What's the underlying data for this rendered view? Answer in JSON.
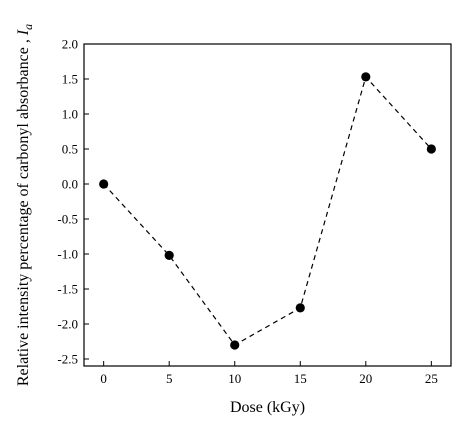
{
  "chart_data": {
    "type": "line",
    "xlabel": "Dose (kGy)",
    "ylabel_text": "Relative intensity percentage of carbonyl absorbance , ",
    "ylabel_symbol": "I",
    "ylabel_subscript": "a",
    "xlim": [
      -1.5,
      26.5
    ],
    "ylim": [
      -2.6,
      2.0
    ],
    "x_ticks": [
      0,
      5,
      10,
      15,
      20,
      25
    ],
    "y_ticks": [
      2.0,
      1.5,
      1.0,
      0.5,
      0.0,
      -0.5,
      -1.0,
      -1.5,
      -2.0,
      -2.5
    ],
    "x_tick_labels": [
      "0",
      "5",
      "10",
      "15",
      "20",
      "25"
    ],
    "y_tick_labels": [
      "2.0",
      "1.5",
      "1.0",
      "0.5",
      "0.0",
      "-0.5",
      "-1.0",
      "-1.5",
      "-2.0",
      "-2.5"
    ],
    "series": [
      {
        "x": [
          0,
          5,
          10,
          15,
          20,
          25
        ],
        "y": [
          0.0,
          -1.02,
          -2.3,
          -1.77,
          1.53,
          0.5
        ]
      }
    ],
    "line_style": "dashed",
    "marker": "filled-circle",
    "color": "#000000",
    "grid": false,
    "legend": "none"
  }
}
